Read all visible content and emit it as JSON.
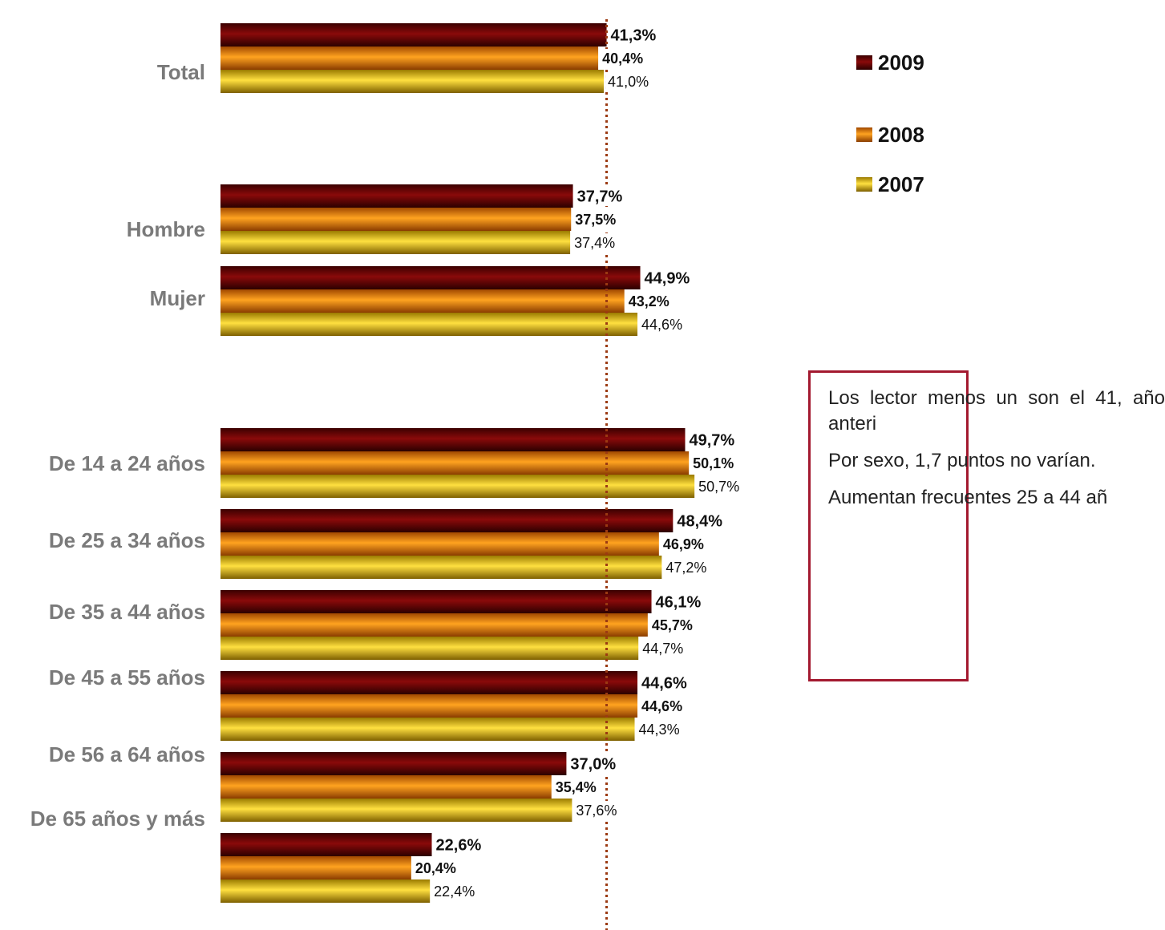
{
  "chart_data": {
    "type": "bar",
    "orientation": "horizontal",
    "title": "",
    "xlabel": "",
    "ylabel": "",
    "xlim": [
      0,
      55
    ],
    "reference_line": 41.3,
    "categories": [
      "Total",
      "Hombre",
      "Mujer",
      "De 14 a 24 años",
      "De 25 a 34 años",
      "De 35 a 44 años",
      "De 45 a 55 años",
      "De 56 a 64 años",
      "De 65 años y más"
    ],
    "series": [
      {
        "name": "2009",
        "color": "#6e0000",
        "values": [
          41.3,
          37.7,
          44.9,
          49.7,
          48.4,
          46.1,
          44.6,
          37.0,
          22.6
        ],
        "labels": [
          "41,3%",
          "37,7%",
          "44,9%",
          "49,7%",
          "48,4%",
          "46,1%",
          "44,6%",
          "37,0%",
          "22,6%"
        ]
      },
      {
        "name": "2008",
        "color": "#f08a00",
        "values": [
          40.4,
          37.5,
          43.2,
          50.1,
          46.9,
          45.7,
          44.6,
          35.4,
          20.4
        ],
        "labels": [
          "40,4%",
          "37,5%",
          "43,2%",
          "50,1%",
          "46,9%",
          "45,7%",
          "44,6%",
          "35,4%",
          "20,4%"
        ]
      },
      {
        "name": "2007",
        "color": "#e8c000",
        "values": [
          41.0,
          37.4,
          44.6,
          50.7,
          47.2,
          44.7,
          44.3,
          37.6,
          22.4
        ],
        "labels": [
          "41,0%",
          "37,4%",
          "44,6%",
          "50,7%",
          "47,2%",
          "44,7%",
          "44,3%",
          "37,6%",
          "22,4%"
        ]
      }
    ],
    "legend_position": "top-right"
  },
  "note": {
    "paragraphs": [
      "Los lector menos un son el 41, año anteri",
      "Por sexo, 1,7 puntos no varían.",
      "Aumentan frecuentes 25 a 44 añ"
    ]
  }
}
